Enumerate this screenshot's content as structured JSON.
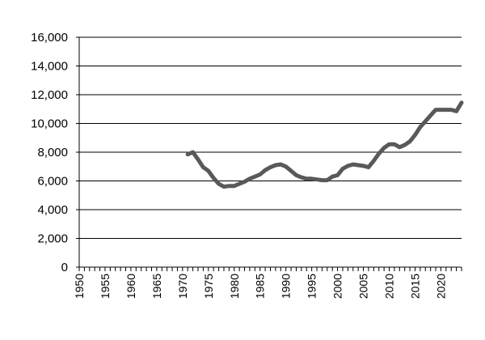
{
  "chart_data": {
    "type": "line",
    "title": "",
    "xlabel": "",
    "ylabel": "",
    "xlim": [
      1950,
      2024
    ],
    "ylim": [
      0,
      16000
    ],
    "grid": "horizontal",
    "legend": "none",
    "y_ticks": [
      0,
      2000,
      4000,
      6000,
      8000,
      10000,
      12000,
      14000,
      16000
    ],
    "y_tick_labels": [
      "0",
      "2,000",
      "4,000",
      "6,000",
      "8,000",
      "10,000",
      "12,000",
      "14,000",
      "16,000"
    ],
    "x_ticks": [
      1950,
      1955,
      1960,
      1965,
      1970,
      1975,
      1980,
      1985,
      1990,
      1995,
      2000,
      2005,
      2010,
      2015,
      2020
    ],
    "x_tick_labels": [
      "1950",
      "1955",
      "1960",
      "1965",
      "1970",
      "1975",
      "1980",
      "1985",
      "1990",
      "1995",
      "2000",
      "2005",
      "2010",
      "2015",
      "2020"
    ],
    "line_color": "#595959",
    "series": [
      {
        "x": [
          1971,
          1972,
          1973,
          1974,
          1975,
          1976,
          1977,
          1978,
          1979,
          1980,
          1981,
          1982,
          1983,
          1984,
          1985,
          1986,
          1987,
          1988,
          1989,
          1990,
          1991,
          1992,
          1993,
          1994,
          1995,
          1996,
          1997,
          1998,
          1999,
          2000,
          2001,
          2002,
          2003,
          2004,
          2005,
          2006,
          2007,
          2008,
          2009,
          2010,
          2011,
          2012,
          2013,
          2014,
          2015,
          2016,
          2017,
          2018,
          2019,
          2020,
          2021,
          2022,
          2023,
          2024
        ],
        "values": [
          7850,
          8000,
          7500,
          6950,
          6700,
          6200,
          5800,
          5600,
          5650,
          5650,
          5800,
          5950,
          6150,
          6300,
          6450,
          6750,
          6950,
          7100,
          7150,
          7000,
          6700,
          6400,
          6250,
          6150,
          6150,
          6100,
          6050,
          6050,
          6300,
          6400,
          6850,
          7050,
          7150,
          7100,
          7050,
          6950,
          7400,
          7900,
          8300,
          8550,
          8550,
          8350,
          8500,
          8750,
          9200,
          9750,
          10150,
          10550,
          10950,
          10950,
          10950,
          10950,
          10850,
          11450
        ]
      }
    ]
  }
}
